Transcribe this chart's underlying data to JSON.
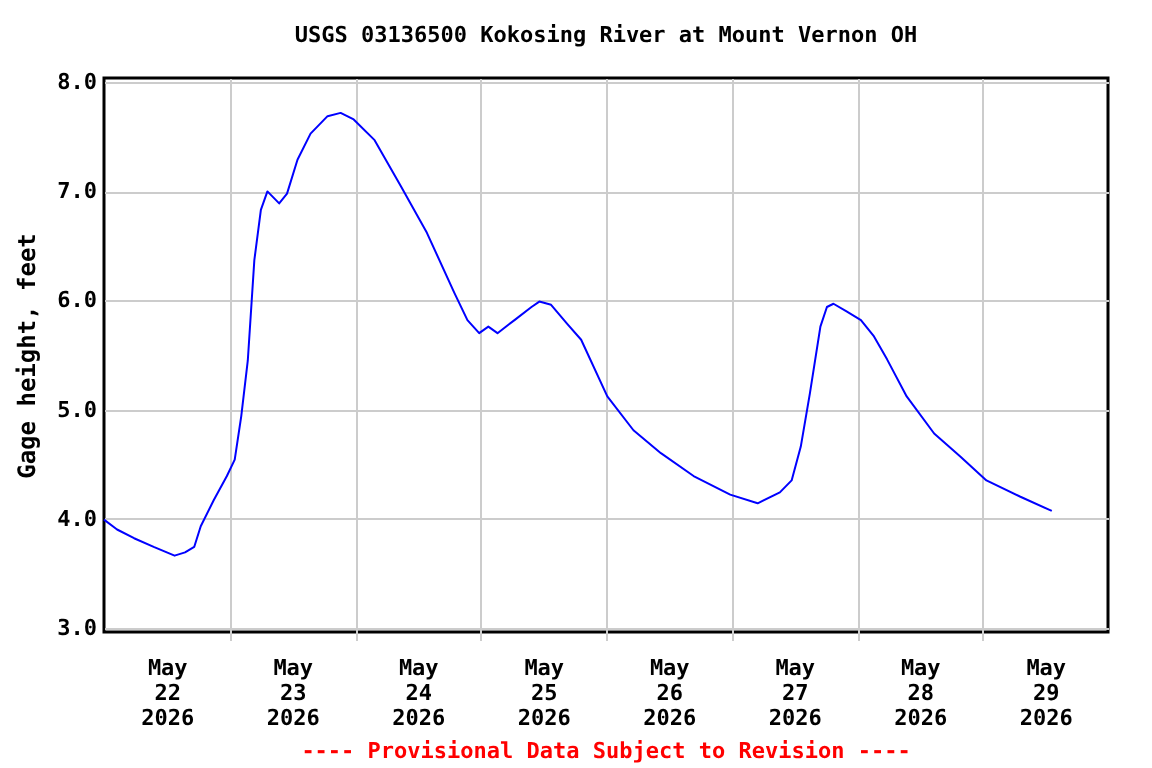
{
  "chart_data": {
    "type": "line",
    "title": "USGS 03136500 Kokosing River at Mount Vernon OH",
    "ylabel": "Gage height, feet",
    "annotations": [
      "---- Provisional Data Subject to Revision ----"
    ],
    "x": [
      "2026-05-22T00:00",
      "2026-05-22T02:30",
      "2026-05-22T05:45",
      "2026-05-22T09:30",
      "2026-05-22T13:30",
      "2026-05-22T15:30",
      "2026-05-22T17:15",
      "2026-05-22T18:30",
      "2026-05-22T21:00",
      "2026-05-22T23:30",
      "2026-05-23T01:00",
      "2026-05-23T02:15",
      "2026-05-23T03:30",
      "2026-05-23T04:45",
      "2026-05-23T06:00",
      "2026-05-23T07:15",
      "2026-05-23T09:30",
      "2026-05-23T11:00",
      "2026-05-23T13:00",
      "2026-05-23T15:30",
      "2026-05-23T18:45",
      "2026-05-23T21:15",
      "2026-05-23T23:45",
      "2026-05-24T03:45",
      "2026-05-24T08:45",
      "2026-05-24T13:45",
      "2026-05-24T19:00",
      "2026-05-24T21:30",
      "2026-05-24T23:45",
      "2026-05-25T01:30",
      "2026-05-25T03:15",
      "2026-05-25T06:30",
      "2026-05-25T09:45",
      "2026-05-25T11:15",
      "2026-05-25T13:30",
      "2026-05-25T16:30",
      "2026-05-25T19:15",
      "2026-05-26T00:15",
      "2026-05-26T05:15",
      "2026-05-26T10:30",
      "2026-05-26T16:45",
      "2026-05-26T23:45",
      "2026-05-27T05:00",
      "2026-05-27T09:15",
      "2026-05-27T11:30",
      "2026-05-27T13:15",
      "2026-05-27T15:00",
      "2026-05-27T17:00",
      "2026-05-27T18:15",
      "2026-05-27T19:30",
      "2026-05-27T22:00",
      "2026-05-28T00:45",
      "2026-05-28T03:15",
      "2026-05-28T05:45",
      "2026-05-28T09:30",
      "2026-05-28T14:45",
      "2026-05-28T19:45",
      "2026-05-29T00:45",
      "2026-05-29T07:15",
      "2026-05-29T13:15"
    ],
    "series": [
      {
        "color": "#0000ff",
        "values": [
          3.99,
          3.9,
          3.82,
          3.74,
          3.66,
          3.69,
          3.74,
          3.93,
          4.17,
          4.39,
          4.54,
          4.94,
          5.45,
          6.37,
          6.83,
          7.0,
          6.89,
          6.98,
          7.29,
          7.53,
          7.69,
          7.72,
          7.66,
          7.47,
          7.05,
          6.62,
          6.07,
          5.82,
          5.7,
          5.76,
          5.7,
          5.82,
          5.94,
          5.99,
          5.96,
          5.79,
          5.64,
          5.12,
          4.81,
          4.6,
          4.39,
          4.22,
          4.14,
          4.24,
          4.35,
          4.66,
          5.15,
          5.76,
          5.94,
          5.97,
          5.9,
          5.82,
          5.67,
          5.46,
          5.12,
          4.78,
          4.57,
          4.35,
          4.2,
          4.07
        ]
      }
    ],
    "xlim": [
      "2026-05-22T00:00",
      "2026-05-30T00:00"
    ],
    "xticks": [
      {
        "value": "2026-05-22T12:00",
        "label": "May 22 2026"
      },
      {
        "value": "2026-05-23T00:00",
        "label": null
      },
      {
        "value": "2026-05-23T12:00",
        "label": "May 23 2026"
      },
      {
        "value": "2026-05-24T00:00",
        "label": null
      },
      {
        "value": "2026-05-24T12:00",
        "label": "May 24 2026"
      },
      {
        "value": "2026-05-25T00:00",
        "label": null
      },
      {
        "value": "2026-05-25T12:00",
        "label": "May 25 2026"
      },
      {
        "value": "2026-05-26T00:00",
        "label": null
      },
      {
        "value": "2026-05-26T12:00",
        "label": "May 26 2026"
      },
      {
        "value": "2026-05-27T00:00",
        "label": null
      },
      {
        "value": "2026-05-27T12:00",
        "label": "May 27 2026"
      },
      {
        "value": "2026-05-28T00:00",
        "label": null
      },
      {
        "value": "2026-05-28T12:00",
        "label": "May 28 2026"
      },
      {
        "value": "2026-05-29T00:00",
        "label": null
      },
      {
        "value": "2026-05-29T12:00",
        "label": "May 29 2026"
      }
    ],
    "ylim": [
      2.96,
      8.04
    ],
    "yticks": [
      {
        "value": 3,
        "label": "3.0"
      },
      {
        "value": 4,
        "label": "4.0"
      },
      {
        "value": 5,
        "label": "5.0"
      },
      {
        "value": 6,
        "label": "6.0"
      },
      {
        "value": 7,
        "label": "7.0"
      },
      {
        "value": 8,
        "label": "8.0"
      }
    ],
    "grid": true,
    "marker": "none",
    "line_style": "solid"
  }
}
